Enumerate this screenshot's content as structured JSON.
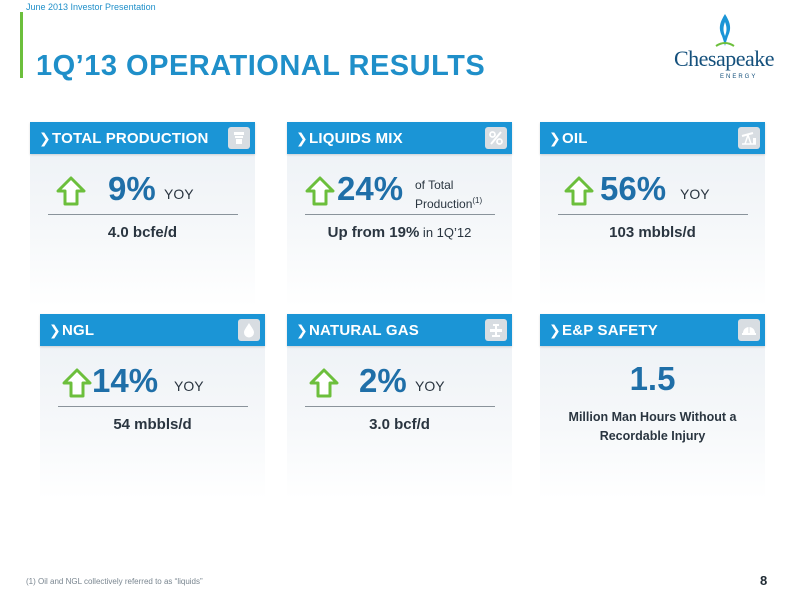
{
  "header": {
    "top_label": "June 2013 Investor Presentation",
    "title": "1Q’13 OPERATIONAL RESULTS"
  },
  "logo": {
    "name": "Chesapeake",
    "sub": "ENERGY"
  },
  "colors": {
    "header_blue": "#1b95d6",
    "title_blue": "#1f8fc9",
    "accent_green": "#6cbf3c",
    "metric_blue": "#1f6fa8"
  },
  "cards": {
    "total_production": {
      "label": "TOTAL PRODUCTION",
      "icon": "gas-burner-icon",
      "value": "9%",
      "unit": "YOY",
      "detail": "4.0 bcfe/d"
    },
    "liquids_mix": {
      "label": "LIQUIDS MIX",
      "icon": "percent-icon",
      "value": "24%",
      "unit_line1": "of Total",
      "unit_line2": "Production",
      "unit_sup": "(1)",
      "detail_bold": "Up from 19%",
      "detail_rest": " in 1Q’12"
    },
    "oil": {
      "label": "OIL",
      "icon": "oil-pumpjack-icon",
      "value": "56%",
      "unit": "YOY",
      "detail": "103 mbbls/d"
    },
    "ngl": {
      "label": "NGL",
      "icon": "droplet-icon",
      "value": "14%",
      "unit": "YOY",
      "detail": "54 mbbls/d"
    },
    "natural_gas": {
      "label": "NATURAL GAS",
      "icon": "gas-valve-icon",
      "value": "2%",
      "unit": "YOY",
      "detail": "3.0 bcf/d"
    },
    "safety": {
      "label": "E&P SAFETY",
      "icon": "hard-hat-icon",
      "value": "1.5",
      "detail_line1": "Million Man Hours Without a",
      "detail_line2": "Recordable Injury"
    }
  },
  "footer": {
    "footnote": "(1) Oil and NGL collectively referred to as “liquids”",
    "page_number": "8"
  }
}
